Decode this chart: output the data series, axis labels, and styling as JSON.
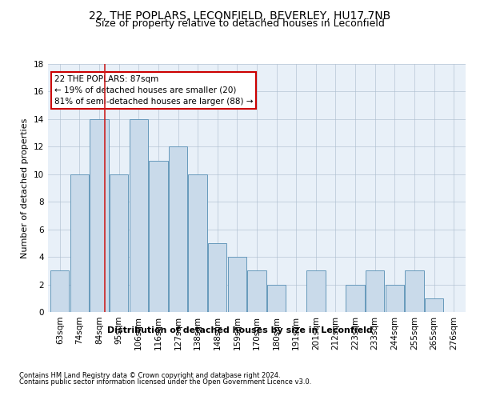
{
  "title": "22, THE POPLARS, LECONFIELD, BEVERLEY, HU17 7NB",
  "subtitle": "Size of property relative to detached houses in Leconfield",
  "xlabel": "Distribution of detached houses by size in Leconfield",
  "ylabel": "Number of detached properties",
  "categories": [
    "63sqm",
    "74sqm",
    "84sqm",
    "95sqm",
    "106sqm",
    "116sqm",
    "127sqm",
    "138sqm",
    "148sqm",
    "159sqm",
    "170sqm",
    "180sqm",
    "191sqm",
    "201sqm",
    "212sqm",
    "223sqm",
    "233sqm",
    "244sqm",
    "255sqm",
    "265sqm",
    "276sqm"
  ],
  "values": [
    3,
    10,
    14,
    10,
    14,
    11,
    12,
    10,
    5,
    4,
    3,
    2,
    0,
    3,
    0,
    2,
    3,
    2,
    3,
    1,
    0
  ],
  "bar_color": "#c9daea",
  "bar_edge_color": "#6699bb",
  "ylim": [
    0,
    18
  ],
  "yticks": [
    0,
    2,
    4,
    6,
    8,
    10,
    12,
    14,
    16,
    18
  ],
  "property_label": "22 THE POPLARS: 87sqm",
  "annotation_line1": "← 19% of detached houses are smaller (20)",
  "annotation_line2": "81% of semi-detached houses are larger (88) →",
  "annotation_box_color": "#ffffff",
  "annotation_box_edge": "#cc0000",
  "red_line_x": 2.3,
  "footnote1": "Contains HM Land Registry data © Crown copyright and database right 2024.",
  "footnote2": "Contains public sector information licensed under the Open Government Licence v3.0.",
  "plot_bg_color": "#e8f0f8",
  "title_fontsize": 10,
  "subtitle_fontsize": 9,
  "xlabel_fontsize": 8,
  "ylabel_fontsize": 8,
  "tick_fontsize": 7.5,
  "annot_fontsize": 7.5,
  "footnote_fontsize": 6
}
